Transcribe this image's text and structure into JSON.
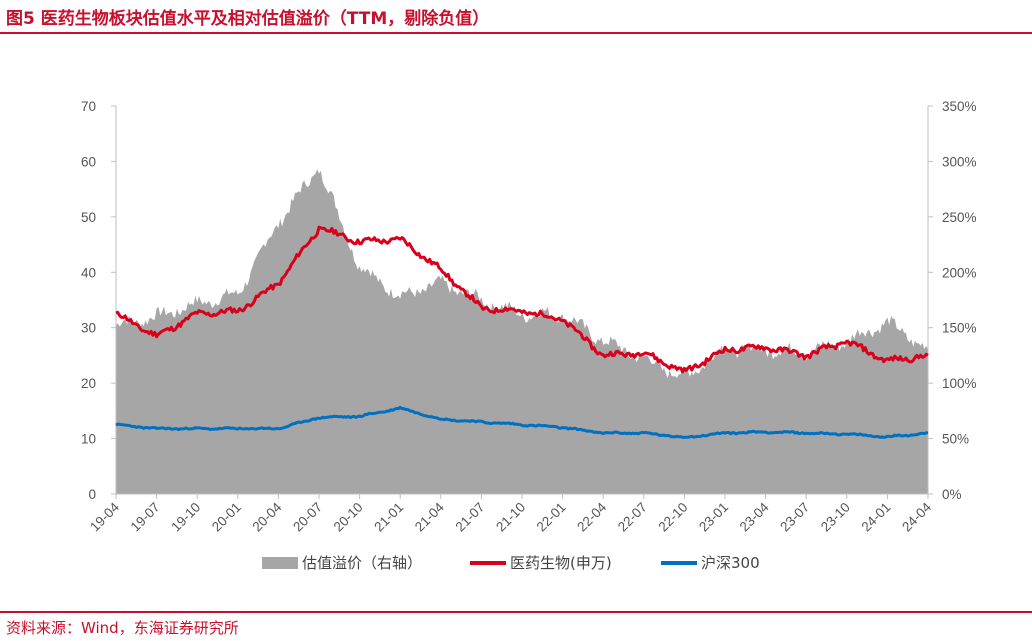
{
  "title": "图5 医药生物板块估值水平及相对估值溢价（TTM，剔除负值）",
  "source": "资料来源：Wind，东海证券研究所",
  "colors": {
    "accent": "#c8102e",
    "premium": "#a6a6a6",
    "pharma": "#d9001b",
    "csi300": "#0070c0"
  },
  "chart_data": {
    "type": "line",
    "title": "医药生物板块估值水平及相对估值溢价（TTM，剔除负值）",
    "categories": [
      "19-04",
      "19-07",
      "19-10",
      "20-01",
      "20-04",
      "20-07",
      "20-10",
      "21-01",
      "21-04",
      "21-07",
      "21-10",
      "22-01",
      "22-04",
      "22-07",
      "22-10",
      "23-01",
      "23-04",
      "23-07",
      "23-10",
      "24-01",
      "24-04"
    ],
    "left_axis": {
      "ylim": [
        0,
        70
      ],
      "ticks": [
        "0",
        "10",
        "20",
        "30",
        "40",
        "50",
        "60",
        "70"
      ]
    },
    "right_axis": {
      "ylim": [
        0,
        3.5
      ],
      "ticks": [
        "0%",
        "50%",
        "100%",
        "150%",
        "200%",
        "250%",
        "300%",
        "350%"
      ]
    },
    "series": [
      {
        "name": "估值溢价（右轴）",
        "type": "area",
        "axis": "right",
        "values": [
          1.52,
          1.6,
          1.72,
          1.8,
          2.45,
          2.95,
          2.05,
          1.78,
          1.9,
          1.75,
          1.62,
          1.62,
          1.38,
          1.22,
          1.05,
          1.32,
          1.3,
          1.28,
          1.38,
          1.55,
          1.3
        ]
      },
      {
        "name": "医药生物(申万)",
        "type": "line",
        "axis": "left",
        "values": [
          32.5,
          28.5,
          32.5,
          33.0,
          38.0,
          48.0,
          45.5,
          46.0,
          40.5,
          33.5,
          33.0,
          31.5,
          25.0,
          25.5,
          22.0,
          26.0,
          26.5,
          25.0,
          27.5,
          24.0,
          25.0
        ]
      },
      {
        "name": "沪深300",
        "type": "line",
        "axis": "left",
        "values": [
          12.5,
          11.8,
          11.8,
          11.8,
          11.8,
          13.8,
          14.0,
          15.5,
          13.5,
          13.0,
          12.5,
          12.0,
          11.0,
          11.0,
          10.2,
          11.0,
          11.2,
          11.0,
          10.8,
          10.3,
          11.0
        ]
      }
    ],
    "legend": [
      "估值溢价（右轴）",
      "医药生物(申万)",
      "沪深300"
    ],
    "legend_position": "bottom"
  }
}
